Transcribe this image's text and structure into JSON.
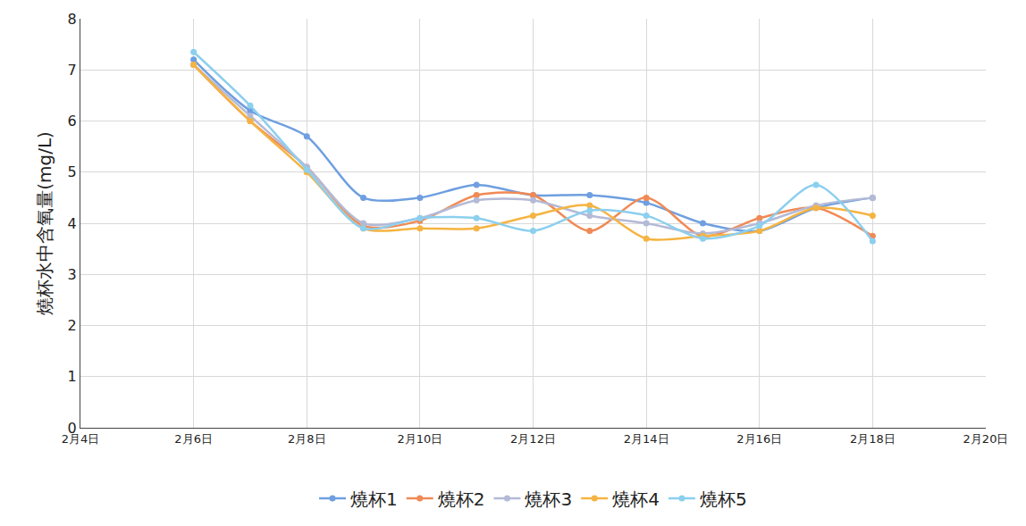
{
  "chart_data": {
    "type": "line",
    "y_label": "燒杯水中含氧量(mg/L)",
    "x": [
      6,
      7,
      8,
      9,
      10,
      11,
      12,
      13,
      14,
      15,
      16,
      17,
      18
    ],
    "xlim": [
      4,
      20
    ],
    "xticks": [
      {
        "value": 4,
        "label": "2月4日"
      },
      {
        "value": 6,
        "label": "2月6日"
      },
      {
        "value": 8,
        "label": "2月8日"
      },
      {
        "value": 10,
        "label": "2月10日"
      },
      {
        "value": 12,
        "label": "2月12日"
      },
      {
        "value": 14,
        "label": "2月14日"
      },
      {
        "value": 16,
        "label": "2月16日"
      },
      {
        "value": 18,
        "label": "2月18日"
      },
      {
        "value": 20,
        "label": "2月20日"
      }
    ],
    "ylim": [
      0,
      8
    ],
    "yticks": [
      0,
      1,
      2,
      3,
      4,
      5,
      6,
      7,
      8
    ],
    "grid": true,
    "legend": "bottom",
    "marker": "circle",
    "line_style": "solid",
    "series": [
      {
        "name": "燒杯1",
        "color": "#6f9fe0",
        "values": [
          7.2,
          6.2,
          5.7,
          4.5,
          4.5,
          4.75,
          4.55,
          4.55,
          4.4,
          4.0,
          3.85,
          4.3,
          4.5
        ]
      },
      {
        "name": "燒杯2",
        "color": "#f08a55",
        "values": [
          7.1,
          6.0,
          5.1,
          3.95,
          4.05,
          4.55,
          4.55,
          3.85,
          4.5,
          3.75,
          4.1,
          4.3,
          3.75
        ]
      },
      {
        "name": "燒杯3",
        "color": "#b4bad6",
        "values": [
          7.1,
          6.1,
          5.1,
          4.0,
          4.1,
          4.45,
          4.45,
          4.15,
          4.0,
          3.8,
          4.0,
          4.35,
          4.5
        ]
      },
      {
        "name": "燒杯4",
        "color": "#f5b442",
        "values": [
          7.1,
          6.0,
          5.0,
          3.9,
          3.9,
          3.9,
          4.15,
          4.35,
          3.7,
          3.75,
          3.85,
          4.3,
          4.15
        ]
      },
      {
        "name": "燒杯5",
        "color": "#8ccfee",
        "values": [
          7.35,
          6.3,
          5.05,
          3.9,
          4.1,
          4.1,
          3.85,
          4.25,
          4.15,
          3.7,
          3.95,
          4.75,
          3.65
        ]
      }
    ]
  }
}
